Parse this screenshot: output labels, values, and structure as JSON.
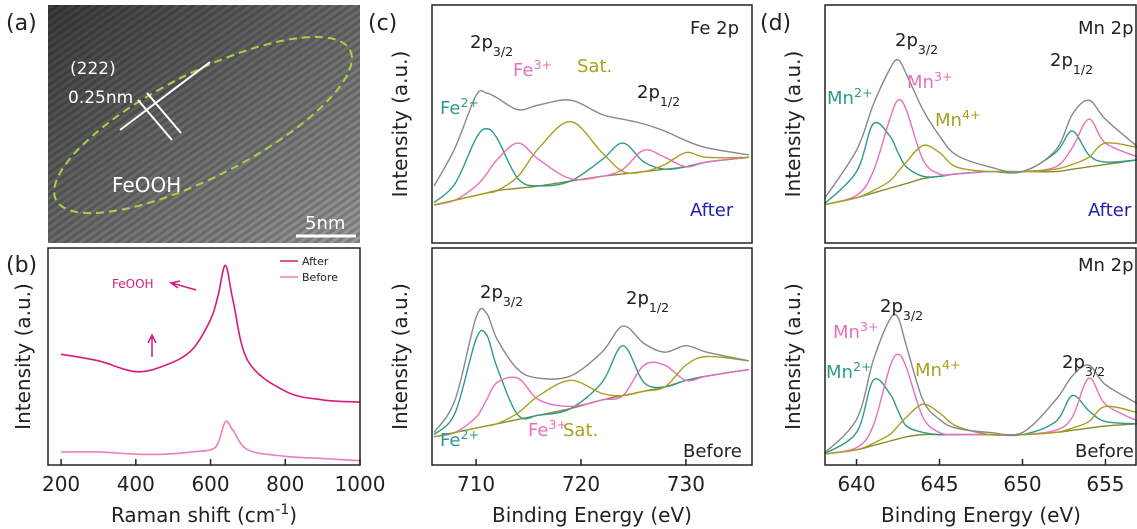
{
  "chart_data": [
    {
      "type": "image",
      "panel_label": "(a)",
      "annotations": [
        "(222)",
        "0.25nm",
        "FeOOH",
        "5nm"
      ]
    },
    {
      "type": "line",
      "panel_label": "(b)",
      "xlabel": [
        {
          "t": "Raman shift (cm"
        },
        {
          "sup": "-1"
        },
        {
          "t": ")"
        }
      ],
      "ylabel": "Intensity (a.u.)",
      "x": [
        200,
        300,
        400,
        480,
        550,
        600,
        620,
        640,
        660,
        700,
        800,
        900,
        1000
      ],
      "xlim": [
        165,
        1000
      ],
      "xticks": [
        200,
        400,
        600,
        800,
        1000
      ],
      "ylim": [
        0,
        100
      ],
      "legend": "upper right",
      "series": [
        {
          "name": "After",
          "color": "#d81b7d",
          "values": [
            51,
            48,
            43,
            46,
            53,
            67,
            78,
            92,
            76,
            48,
            34,
            30,
            29
          ]
        },
        {
          "name": "Before",
          "color": "#ea80c4",
          "values": [
            6,
            6,
            5,
            5,
            6,
            7,
            10,
            20,
            16,
            7,
            4,
            3,
            2
          ]
        }
      ],
      "annotations": [
        "FeOOH"
      ]
    },
    {
      "type": "line",
      "panel_label": "(c)",
      "ylabel": "Intensity (a.u.)",
      "x": [
        706,
        708,
        710,
        711,
        712,
        714,
        716,
        719,
        722,
        724,
        726,
        728,
        730,
        732,
        736
      ],
      "xlim": [
        705.8,
        736.3
      ],
      "ylim": [
        0,
        100
      ],
      "series": [
        {
          "color": "#8a8a2e",
          "values": [
            16,
            18,
            20,
            21,
            22,
            23,
            24,
            26,
            28,
            29,
            30,
            31,
            32,
            34,
            36
          ]
        },
        {
          "color": "#2e9a8e",
          "values": [
            17,
            25,
            44,
            48,
            44,
            27,
            24,
            26,
            35,
            42,
            34,
            31,
            32,
            34,
            36
          ]
        },
        {
          "color": "#e86fc0",
          "values": [
            16,
            18,
            24,
            29,
            35,
            42,
            35,
            27,
            28,
            31,
            39,
            36,
            32,
            34,
            36
          ]
        },
        {
          "color": "#a8a020",
          "values": [
            16,
            18,
            20,
            21,
            22,
            28,
            40,
            51,
            38,
            30,
            30,
            33,
            38,
            36,
            36
          ]
        },
        {
          "color": "#888888",
          "values": [
            24,
            40,
            62,
            63,
            61,
            56,
            58,
            60,
            54,
            52,
            50,
            47,
            43,
            40,
            37
          ]
        }
      ],
      "annotations": [
        [
          {
            "t": "2p"
          },
          {
            "sub": "3/2"
          }
        ],
        [
          {
            "t": "Fe"
          },
          {
            "sup": "3+"
          }
        ],
        "Sat.",
        [
          {
            "t": "2p"
          },
          {
            "sub": "1/2"
          }
        ],
        [
          {
            "t": "Fe"
          },
          {
            "sup": "2+"
          }
        ],
        "Fe 2p",
        "After"
      ]
    },
    {
      "type": "line",
      "ylabel": "Intensity (a.u.)",
      "xlabel": "Binding Energy (eV)",
      "x": [
        706,
        708,
        710,
        711,
        712,
        714,
        716,
        719,
        722,
        724,
        726,
        728,
        730,
        732,
        736
      ],
      "xlim": [
        705.8,
        736.3
      ],
      "xticks": [
        710,
        720,
        730
      ],
      "ylim": [
        0,
        100
      ],
      "series": [
        {
          "color": "#8a8a2e",
          "values": [
            13,
            15,
            17,
            18,
            19,
            21,
            23,
            26,
            30,
            32,
            34,
            36,
            39,
            41,
            44
          ]
        },
        {
          "color": "#2e9a8e",
          "values": [
            14,
            24,
            58,
            60,
            45,
            23,
            23,
            26,
            38,
            55,
            38,
            36,
            39,
            41,
            44
          ]
        },
        {
          "color": "#e86fc0",
          "values": [
            13,
            15,
            22,
            30,
            38,
            40,
            30,
            27,
            30,
            32,
            46,
            46,
            39,
            41,
            44
          ]
        },
        {
          "color": "#a8a020",
          "values": [
            13,
            15,
            17,
            18,
            19,
            24,
            32,
            39,
            33,
            32,
            34,
            36,
            46,
            50,
            48
          ]
        },
        {
          "color": "#888888",
          "values": [
            15,
            30,
            68,
            70,
            58,
            44,
            40,
            41,
            52,
            64,
            56,
            52,
            55,
            52,
            48
          ]
        }
      ],
      "annotations": [
        [
          {
            "t": "2p"
          },
          {
            "sub": "3/2"
          }
        ],
        [
          {
            "t": "2p"
          },
          {
            "sub": "1/2"
          }
        ],
        [
          {
            "t": "Fe"
          },
          {
            "sup": "2+"
          }
        ],
        [
          {
            "t": "Fe"
          },
          {
            "sup": "3+"
          }
        ],
        "Sat.",
        "Before"
      ]
    },
    {
      "type": "line",
      "panel_label": "(d)",
      "ylabel": "Intensity (a.u.)",
      "x": [
        638,
        640,
        641,
        642,
        642.5,
        643,
        644,
        645,
        646,
        648,
        650,
        652,
        653,
        654,
        655,
        657
      ],
      "xlim": [
        638.1,
        656.9
      ],
      "ylim": [
        0,
        100
      ],
      "series": [
        {
          "color": "#8a8a2e",
          "values": [
            16,
            19,
            21,
            23,
            24,
            25,
            27,
            28,
            29,
            30,
            30,
            30,
            31,
            32,
            33,
            35
          ]
        },
        {
          "color": "#2e9a8e",
          "values": [
            16,
            30,
            50,
            45,
            38,
            32,
            28,
            28,
            29,
            30,
            30,
            38,
            47,
            37,
            34,
            35
          ]
        },
        {
          "color": "#e86fc0",
          "values": [
            16,
            20,
            30,
            52,
            60,
            56,
            35,
            29,
            29,
            30,
            30,
            32,
            40,
            52,
            42,
            36
          ]
        },
        {
          "color": "#a8a020",
          "values": [
            16,
            19,
            22,
            26,
            30,
            34,
            41,
            38,
            32,
            30,
            30,
            31,
            33,
            36,
            42,
            40
          ]
        },
        {
          "color": "#888888",
          "values": [
            18,
            39,
            58,
            73,
            77,
            71,
            56,
            45,
            37,
            32,
            30,
            39,
            54,
            60,
            52,
            40
          ]
        }
      ],
      "annotations": [
        [
          {
            "t": "2p"
          },
          {
            "sub": "3/2"
          }
        ],
        [
          {
            "t": "Mn"
          },
          {
            "sup": "3+"
          }
        ],
        [
          {
            "t": "2p"
          },
          {
            "sub": "1/2"
          }
        ],
        [
          {
            "t": "Mn"
          },
          {
            "sup": "2+"
          }
        ],
        [
          {
            "t": "Mn"
          },
          {
            "sup": "4+"
          }
        ],
        "Mn 2p",
        "After"
      ]
    },
    {
      "type": "line",
      "ylabel": "Intensity (a.u.)",
      "xlabel": "Binding Energy (eV)",
      "x": [
        638,
        640,
        641,
        642,
        642.5,
        643,
        644,
        645,
        646,
        648,
        650,
        652,
        653,
        654,
        655,
        657
      ],
      "xlim": [
        638.1,
        656.9
      ],
      "xticks": [
        640,
        645,
        650,
        655
      ],
      "ylim": [
        0,
        100
      ],
      "series": [
        {
          "color": "#8a8a2e",
          "values": [
            5,
            7,
            9,
            11,
            12,
            13,
            14,
            14,
            14,
            14,
            14,
            15,
            16,
            17,
            18,
            19
          ]
        },
        {
          "color": "#2e9a8e",
          "values": [
            5,
            15,
            39,
            33,
            25,
            18,
            15,
            14,
            14,
            14,
            14,
            20,
            32,
            25,
            20,
            19
          ]
        },
        {
          "color": "#e86fc0",
          "values": [
            5,
            8,
            18,
            45,
            51,
            45,
            22,
            15,
            14,
            14,
            14,
            16,
            22,
            40,
            28,
            20
          ]
        },
        {
          "color": "#a8a020",
          "values": [
            5,
            7,
            10,
            14,
            18,
            22,
            28,
            24,
            18,
            14,
            14,
            15,
            17,
            20,
            27,
            24
          ]
        },
        {
          "color": "#888888",
          "values": [
            5,
            21,
            48,
            67,
            68,
            55,
            30,
            21,
            17,
            15,
            15,
            30,
            41,
            46,
            37,
            28
          ]
        }
      ],
      "annotations": [
        "Mn 2p",
        [
          {
            "t": "Mn"
          },
          {
            "sup": "3+"
          }
        ],
        [
          {
            "t": "2p"
          },
          {
            "sub": "3/2"
          }
        ],
        [
          {
            "t": "2p"
          },
          {
            "sub": "3/2"
          }
        ],
        [
          {
            "t": "Mn"
          },
          {
            "sup": "2+"
          }
        ],
        [
          {
            "t": "Mn"
          },
          {
            "sup": "4+"
          }
        ],
        "Before"
      ]
    }
  ]
}
